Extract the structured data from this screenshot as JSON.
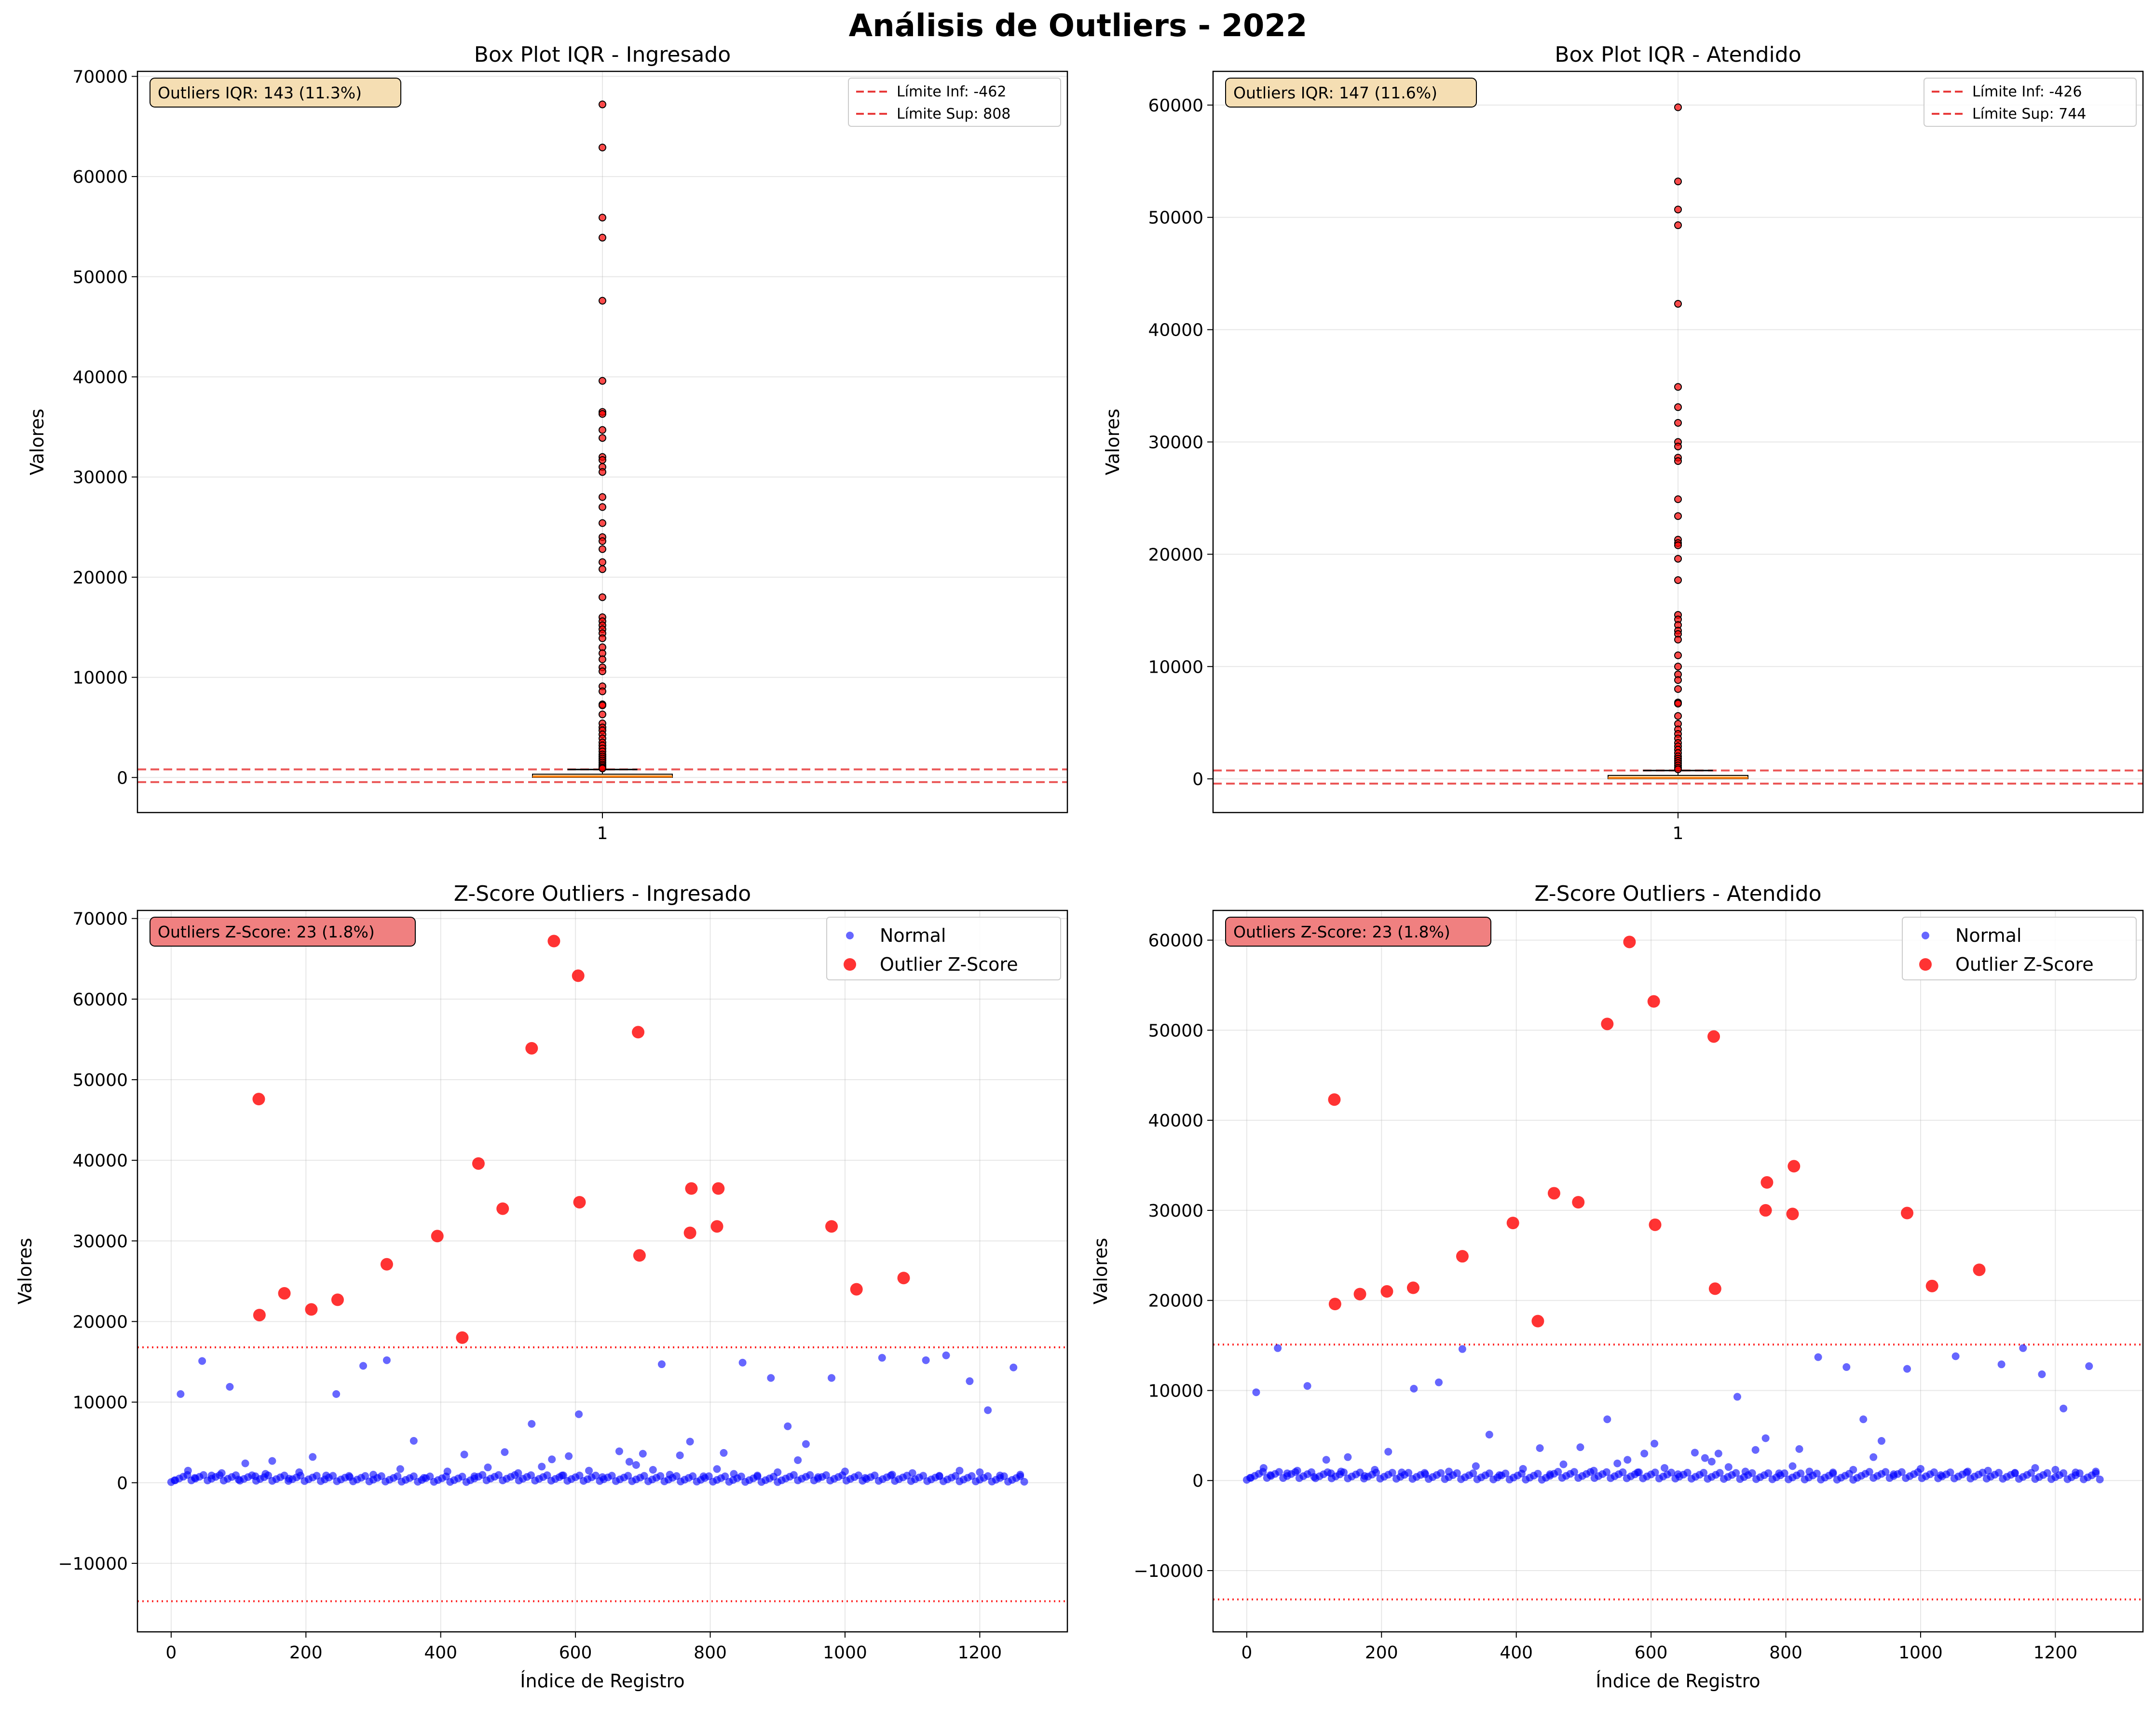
{
  "figure": {
    "title": "Análisis de Outliers - 2022",
    "colors": {
      "normal": "#0000ff",
      "outlier": "#ff0000",
      "limit_line": "#e83a3a",
      "iqr_badge": "#f5deb3",
      "zscore_badge": "#f08080",
      "median": "#ff7f0e",
      "box_fill": "#f5deb3"
    }
  },
  "chart_data": [
    {
      "type": "box",
      "title": "Box Plot IQR - Ingresado",
      "xlabel": "",
      "ylabel": "Valores",
      "xticks": [
        "1"
      ],
      "ylim": [
        -3500,
        70500
      ],
      "yticks": [
        0,
        10000,
        20000,
        30000,
        40000,
        50000,
        60000,
        70000
      ],
      "grid": true,
      "legend_position": "upper right",
      "annotation": "Outliers IQR: 143 (11.3%)",
      "box": {
        "q1": 15,
        "median": 90,
        "q3": 330,
        "whisker_low": 0,
        "whisker_high": 800
      },
      "limits": [
        {
          "label": "Límite Inf: -462",
          "value": -462
        },
        {
          "label": "Límite Sup: 808",
          "value": 808
        }
      ],
      "outliers": [
        67200,
        62900,
        55900,
        53900,
        47600,
        39600,
        36500,
        36300,
        34700,
        33900,
        32000,
        31700,
        31000,
        30500,
        28000,
        27000,
        25400,
        24000,
        23600,
        22800,
        21500,
        20800,
        18000,
        16000,
        15600,
        15200,
        14800,
        14400,
        13900,
        13000,
        12400,
        11800,
        11000,
        10600,
        9100,
        8600,
        7300,
        7200,
        6300,
        5400,
        5000,
        4700,
        4300,
        3900,
        3500,
        3200,
        2900,
        2600,
        2300,
        2100,
        1900,
        1700,
        1500,
        1300,
        1150,
        1000,
        900
      ]
    },
    {
      "type": "box",
      "title": "Box Plot IQR - Atendido",
      "xlabel": "",
      "ylabel": "Valores",
      "xticks": [
        "1"
      ],
      "ylim": [
        -3000,
        63000
      ],
      "yticks": [
        0,
        10000,
        20000,
        30000,
        40000,
        50000,
        60000
      ],
      "grid": true,
      "legend_position": "upper right",
      "annotation": "Outliers IQR: 147 (11.6%)",
      "box": {
        "q1": 15,
        "median": 80,
        "q3": 310,
        "whisker_low": 0,
        "whisker_high": 740
      },
      "limits": [
        {
          "label": "Límite Inf: -426",
          "value": -426
        },
        {
          "label": "Límite Sup: 744",
          "value": 744
        }
      ],
      "outliers": [
        59800,
        53200,
        50700,
        49300,
        42300,
        34900,
        33100,
        31700,
        30000,
        29600,
        28600,
        28300,
        24900,
        23400,
        21300,
        21000,
        20800,
        19600,
        17700,
        14600,
        14200,
        13700,
        13200,
        12900,
        12400,
        11000,
        10000,
        9300,
        8800,
        8000,
        6800,
        6700,
        5600,
        4900,
        4400,
        4000,
        3600,
        3200,
        2900,
        2600,
        2300,
        2000,
        1800,
        1600,
        1400,
        1200,
        1000,
        850
      ]
    },
    {
      "type": "scatter",
      "title": "Z-Score Outliers - Ingresado",
      "xlabel": "Índice de Registro",
      "ylabel": "Valores",
      "xlim": [
        -50,
        1330
      ],
      "ylim": [
        -18500,
        71000
      ],
      "xticks": [
        0,
        200,
        400,
        600,
        800,
        1000,
        1200
      ],
      "yticks": [
        -10000,
        0,
        10000,
        20000,
        30000,
        40000,
        50000,
        60000,
        70000
      ],
      "ytick_labels": [
        "−10000",
        "0",
        "10000",
        "20000",
        "30000",
        "40000",
        "50000",
        "60000",
        "70000"
      ],
      "grid": true,
      "legend_position": "upper right",
      "annotation": "Outliers Z-Score: 23 (1.8%)",
      "thresholds": [
        16800,
        -14700
      ],
      "series": [
        {
          "name": "Normal",
          "x": [
            14,
            46,
            87,
            110,
            150,
            210,
            245,
            285,
            320,
            360,
            435,
            495,
            535,
            565,
            605,
            665,
            680,
            700,
            728,
            755,
            770,
            820,
            848,
            890,
            915,
            942,
            980,
            1055,
            1120,
            1150,
            1185,
            1212,
            1250,
            5,
            25,
            35,
            60,
            75,
            100,
            125,
            140,
            175,
            190,
            230,
            265,
            300,
            340,
            375,
            410,
            450,
            470,
            515,
            550,
            580,
            590,
            620,
            640,
            690,
            715,
            740,
            790,
            810,
            835,
            870,
            900,
            930,
            960,
            1000,
            1030,
            1070,
            1100,
            1140,
            1170,
            1200,
            1230,
            1260
          ],
          "values": [
            11000,
            15100,
            11900,
            2400,
            2700,
            3200,
            11000,
            14500,
            15200,
            5200,
            3500,
            3800,
            7300,
            2900,
            8500,
            3900,
            2600,
            3600,
            14700,
            3400,
            5100,
            3700,
            14900,
            13000,
            7000,
            4800,
            13000,
            15500,
            15200,
            15800,
            12600,
            9000,
            14300,
            300,
            1500,
            600,
            900,
            1200,
            400,
            800,
            1100,
            500,
            1300,
            900,
            700,
            1000,
            1700,
            600,
            1400,
            800,
            1900,
            1200,
            2000,
            900,
            3300,
            1500,
            700,
            2200,
            1600,
            1000,
            800,
            1700,
            1100,
            900,
            1300,
            2800,
            700,
            1400,
            600,
            1000,
            1200,
            800,
            1500,
            1300,
            900,
            1000
          ]
        },
        {
          "name": "Outlier Z-Score",
          "x": [
            130,
            131,
            168,
            208,
            247,
            320,
            395,
            432,
            456,
            492,
            535,
            568,
            604,
            606,
            693,
            695,
            770,
            772,
            810,
            812,
            980,
            1017,
            1087
          ],
          "values": [
            47600,
            20800,
            23500,
            21500,
            22700,
            27100,
            30600,
            18000,
            39600,
            34000,
            53900,
            67200,
            62900,
            34800,
            55900,
            28200,
            31000,
            36500,
            31800,
            36500,
            31800,
            24000,
            25400
          ]
        }
      ]
    },
    {
      "type": "scatter",
      "title": "Z-Score Outliers - Atendido",
      "xlabel": "Índice de Registro",
      "ylabel": "Valores",
      "xlim": [
        -50,
        1330
      ],
      "ylim": [
        -16800,
        63300
      ],
      "xticks": [
        0,
        200,
        400,
        600,
        800,
        1000,
        1200
      ],
      "yticks": [
        -10000,
        0,
        10000,
        20000,
        30000,
        40000,
        50000,
        60000
      ],
      "ytick_labels": [
        "−10000",
        "0",
        "10000",
        "20000",
        "30000",
        "40000",
        "50000",
        "60000"
      ],
      "grid": true,
      "legend_position": "upper right",
      "annotation": "Outliers Z-Score: 23 (1.8%)",
      "thresholds": [
        15100,
        -13200
      ],
      "series": [
        {
          "name": "Normal",
          "x": [
            14,
            46,
            90,
            118,
            150,
            210,
            248,
            285,
            320,
            360,
            435,
            495,
            535,
            565,
            605,
            665,
            680,
            700,
            728,
            755,
            770,
            820,
            848,
            890,
            915,
            942,
            980,
            1052,
            1120,
            1152,
            1180,
            1212,
            1250,
            5,
            25,
            35,
            60,
            75,
            100,
            125,
            140,
            175,
            190,
            230,
            265,
            300,
            340,
            375,
            410,
            450,
            470,
            515,
            550,
            580,
            590,
            620,
            640,
            690,
            715,
            740,
            790,
            810,
            835,
            870,
            900,
            930,
            960,
            1000,
            1030,
            1070,
            1100,
            1140,
            1170,
            1200,
            1230,
            1260
          ],
          "values": [
            9800,
            14700,
            10500,
            2300,
            2600,
            3200,
            10200,
            10900,
            14600,
            5100,
            3600,
            3700,
            6800,
            2300,
            4100,
            3100,
            2500,
            3000,
            9300,
            3400,
            4700,
            3500,
            13700,
            12600,
            6800,
            4400,
            12400,
            13800,
            12900,
            14700,
            11800,
            8000,
            12700,
            300,
            1400,
            600,
            800,
            1100,
            400,
            800,
            1000,
            500,
            1200,
            900,
            700,
            1000,
            1600,
            600,
            1300,
            700,
            1800,
            1100,
            1900,
            900,
            3000,
            1400,
            700,
            2100,
            1500,
            1000,
            800,
            1600,
            1000,
            900,
            1200,
            2600,
            700,
            1300,
            600,
            1000,
            1100,
            800,
            1400,
            1200,
            900,
            1000
          ]
        },
        {
          "name": "Outlier Z-Score",
          "x": [
            130,
            131,
            168,
            208,
            247,
            320,
            395,
            432,
            456,
            492,
            535,
            568,
            604,
            606,
            693,
            695,
            770,
            772,
            810,
            812,
            980,
            1017,
            1087
          ],
          "values": [
            42300,
            19600,
            20700,
            21000,
            21400,
            24900,
            28600,
            17700,
            31900,
            30900,
            50700,
            59800,
            53200,
            28400,
            49300,
            21300,
            30000,
            33100,
            29600,
            34900,
            29700,
            21600,
            23400
          ]
        }
      ]
    }
  ]
}
